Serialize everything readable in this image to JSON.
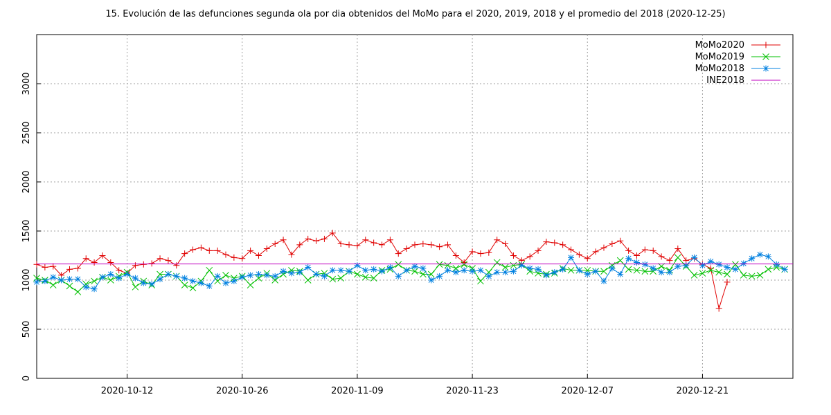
{
  "chart_data": {
    "type": "line",
    "title": "15. Evolución de las defunciones segunda ola por dia obtenidos del MoMo para el 2020, 2019, 2018 y el promedio del 2018 (2020-12-25)",
    "x": [
      "2020-10-01",
      "2020-10-02",
      "2020-10-03",
      "2020-10-04",
      "2020-10-05",
      "2020-10-06",
      "2020-10-07",
      "2020-10-08",
      "2020-10-09",
      "2020-10-10",
      "2020-10-11",
      "2020-10-12",
      "2020-10-13",
      "2020-10-14",
      "2020-10-15",
      "2020-10-16",
      "2020-10-17",
      "2020-10-18",
      "2020-10-19",
      "2020-10-20",
      "2020-10-21",
      "2020-10-22",
      "2020-10-23",
      "2020-10-24",
      "2020-10-25",
      "2020-10-26",
      "2020-10-27",
      "2020-10-28",
      "2020-10-29",
      "2020-10-30",
      "2020-10-31",
      "2020-11-01",
      "2020-11-02",
      "2020-11-03",
      "2020-11-04",
      "2020-11-05",
      "2020-11-06",
      "2020-11-07",
      "2020-11-08",
      "2020-11-09",
      "2020-11-10",
      "2020-11-11",
      "2020-11-12",
      "2020-11-13",
      "2020-11-14",
      "2020-11-15",
      "2020-11-16",
      "2020-11-17",
      "2020-11-18",
      "2020-11-19",
      "2020-11-20",
      "2020-11-21",
      "2020-11-22",
      "2020-11-23",
      "2020-11-24",
      "2020-11-25",
      "2020-11-26",
      "2020-11-27",
      "2020-11-28",
      "2020-11-29",
      "2020-11-30",
      "2020-12-01",
      "2020-12-02",
      "2020-12-03",
      "2020-12-04",
      "2020-12-05",
      "2020-12-06",
      "2020-12-07",
      "2020-12-08",
      "2020-12-09",
      "2020-12-10",
      "2020-12-11",
      "2020-12-12",
      "2020-12-13",
      "2020-12-14",
      "2020-12-15",
      "2020-12-16",
      "2020-12-17",
      "2020-12-18",
      "2020-12-19",
      "2020-12-20",
      "2020-12-21",
      "2020-12-22",
      "2020-12-23",
      "2020-12-24",
      "2020-12-25",
      "2020-12-26",
      "2020-12-27",
      "2020-12-28",
      "2020-12-29",
      "2020-12-30",
      "2020-12-31"
    ],
    "series": [
      {
        "name": "MoMo2020",
        "color": "#e00000",
        "marker": "plus",
        "values": [
          1160,
          1130,
          1140,
          1050,
          1110,
          1120,
          1220,
          1180,
          1250,
          1180,
          1100,
          1070,
          1150,
          1160,
          1170,
          1220,
          1200,
          1150,
          1270,
          1310,
          1330,
          1300,
          1300,
          1260,
          1230,
          1220,
          1300,
          1250,
          1320,
          1370,
          1410,
          1260,
          1360,
          1420,
          1400,
          1420,
          1480,
          1370,
          1360,
          1350,
          1410,
          1380,
          1360,
          1410,
          1270,
          1320,
          1360,
          1370,
          1360,
          1340,
          1360,
          1250,
          1180,
          1290,
          1270,
          1280,
          1410,
          1370,
          1250,
          1200,
          1240,
          1300,
          1390,
          1380,
          1360,
          1310,
          1260,
          1220,
          1290,
          1330,
          1370,
          1400,
          1300,
          1250,
          1310,
          1300,
          1240,
          1200,
          1320,
          1200,
          1220,
          1160,
          1120,
          710,
          980,
          null,
          null,
          null,
          null,
          null,
          null,
          null
        ]
      },
      {
        "name": "MoMo2019",
        "color": "#00c000",
        "marker": "cross",
        "values": [
          1020,
          1000,
          950,
          1000,
          940,
          880,
          960,
          990,
          1030,
          1000,
          1040,
          1080,
          930,
          990,
          950,
          1060,
          1060,
          1040,
          950,
          920,
          990,
          1100,
          990,
          1050,
          1020,
          1040,
          950,
          1020,
          1070,
          1000,
          1060,
          1100,
          1090,
          1000,
          1060,
          1070,
          1010,
          1020,
          1090,
          1060,
          1030,
          1020,
          1100,
          1110,
          1160,
          1100,
          1090,
          1060,
          1060,
          1160,
          1150,
          1120,
          1160,
          1120,
          990,
          1080,
          1180,
          1130,
          1150,
          1160,
          1090,
          1070,
          1060,
          1070,
          1120,
          1100,
          1100,
          1100,
          1090,
          1090,
          1150,
          1200,
          1110,
          1100,
          1090,
          1090,
          1140,
          1100,
          1230,
          1140,
          1050,
          1070,
          1100,
          1080,
          1060,
          1160,
          1050,
          1040,
          1050,
          1110,
          1130,
          1110
        ]
      },
      {
        "name": "MoMo2018",
        "color": "#0080e0",
        "marker": "star",
        "values": [
          980,
          990,
          1030,
          1000,
          1010,
          1010,
          930,
          910,
          1030,
          1060,
          1020,
          1060,
          1020,
          970,
          960,
          1010,
          1060,
          1040,
          1020,
          990,
          970,
          940,
          1040,
          970,
          990,
          1030,
          1050,
          1060,
          1050,
          1040,
          1090,
          1070,
          1080,
          1130,
          1060,
          1040,
          1100,
          1100,
          1090,
          1150,
          1100,
          1110,
          1090,
          1130,
          1040,
          1100,
          1140,
          1120,
          1000,
          1040,
          1100,
          1080,
          1100,
          1090,
          1100,
          1040,
          1080,
          1080,
          1090,
          1150,
          1120,
          1110,
          1050,
          1080,
          1110,
          1230,
          1100,
          1060,
          1090,
          990,
          1120,
          1060,
          1220,
          1180,
          1160,
          1120,
          1080,
          1080,
          1140,
          1150,
          1230,
          1150,
          1190,
          1160,
          1130,
          1110,
          1170,
          1220,
          1260,
          1240,
          1160,
          1110
        ]
      }
    ],
    "reference_lines": [
      {
        "name": "INE2018",
        "color": "#c000c0",
        "value": 1165
      }
    ],
    "xlim": [
      "2020-10-01",
      "2021-01-01"
    ],
    "xticks": [
      "2020-10-12",
      "2020-10-26",
      "2020-11-09",
      "2020-11-23",
      "2020-12-07",
      "2020-12-21"
    ],
    "ylim": [
      0,
      3500
    ],
    "yticks": [
      0,
      500,
      1000,
      1500,
      2000,
      2500,
      3000
    ],
    "grid": true,
    "legend": "top-right"
  }
}
